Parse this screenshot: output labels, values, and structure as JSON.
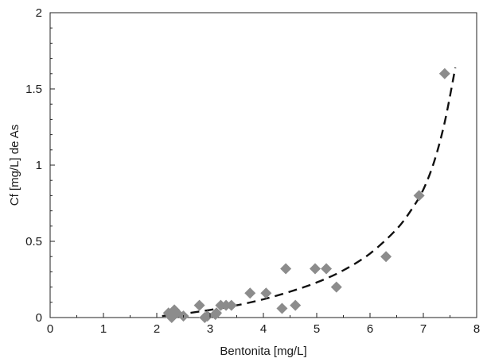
{
  "chart_data": {
    "type": "scatter",
    "xlabel": "Bentonita [mg/L]",
    "ylabel": "Cf [mg/L] de As",
    "xlim": [
      0,
      8
    ],
    "ylim": [
      0,
      2
    ],
    "x_ticks": [
      0,
      1,
      2,
      3,
      4,
      5,
      6,
      7,
      8
    ],
    "y_ticks": [
      0,
      0.5,
      1,
      1.5,
      2
    ],
    "x_tick_labels": [
      "0",
      "1",
      "2",
      "3",
      "4",
      "5",
      "6",
      "7",
      "8"
    ],
    "y_tick_labels": [
      "0",
      "0.5",
      "1",
      "1.5",
      "2"
    ],
    "grid": false,
    "series": [
      {
        "kind": "points",
        "marker": "diamond",
        "color": "#8c8c8c",
        "x": [
          2.22,
          2.28,
          2.33,
          2.38,
          2.5,
          2.8,
          2.9,
          2.95,
          3.1,
          3.12,
          3.2,
          3.3,
          3.4,
          3.75,
          4.05,
          4.35,
          4.42,
          4.6,
          4.97,
          5.18,
          5.37,
          6.3,
          6.92,
          7.4
        ],
        "y": [
          0.03,
          0.0,
          0.05,
          0.03,
          0.01,
          0.08,
          0.0,
          0.01,
          0.02,
          0.03,
          0.08,
          0.08,
          0.08,
          0.16,
          0.16,
          0.06,
          0.32,
          0.08,
          0.32,
          0.32,
          0.2,
          0.4,
          0.8,
          1.6
        ]
      },
      {
        "kind": "fit",
        "style": "dashed",
        "color": "#111111",
        "x": [
          2.1,
          2.5,
          3.0,
          3.5,
          4.0,
          4.5,
          5.0,
          5.5,
          6.0,
          6.5,
          6.8,
          7.0,
          7.2,
          7.4,
          7.6
        ],
        "y": [
          0.01,
          0.025,
          0.05,
          0.08,
          0.12,
          0.17,
          0.23,
          0.31,
          0.42,
          0.58,
          0.72,
          0.84,
          1.02,
          1.28,
          1.64
        ]
      }
    ]
  }
}
